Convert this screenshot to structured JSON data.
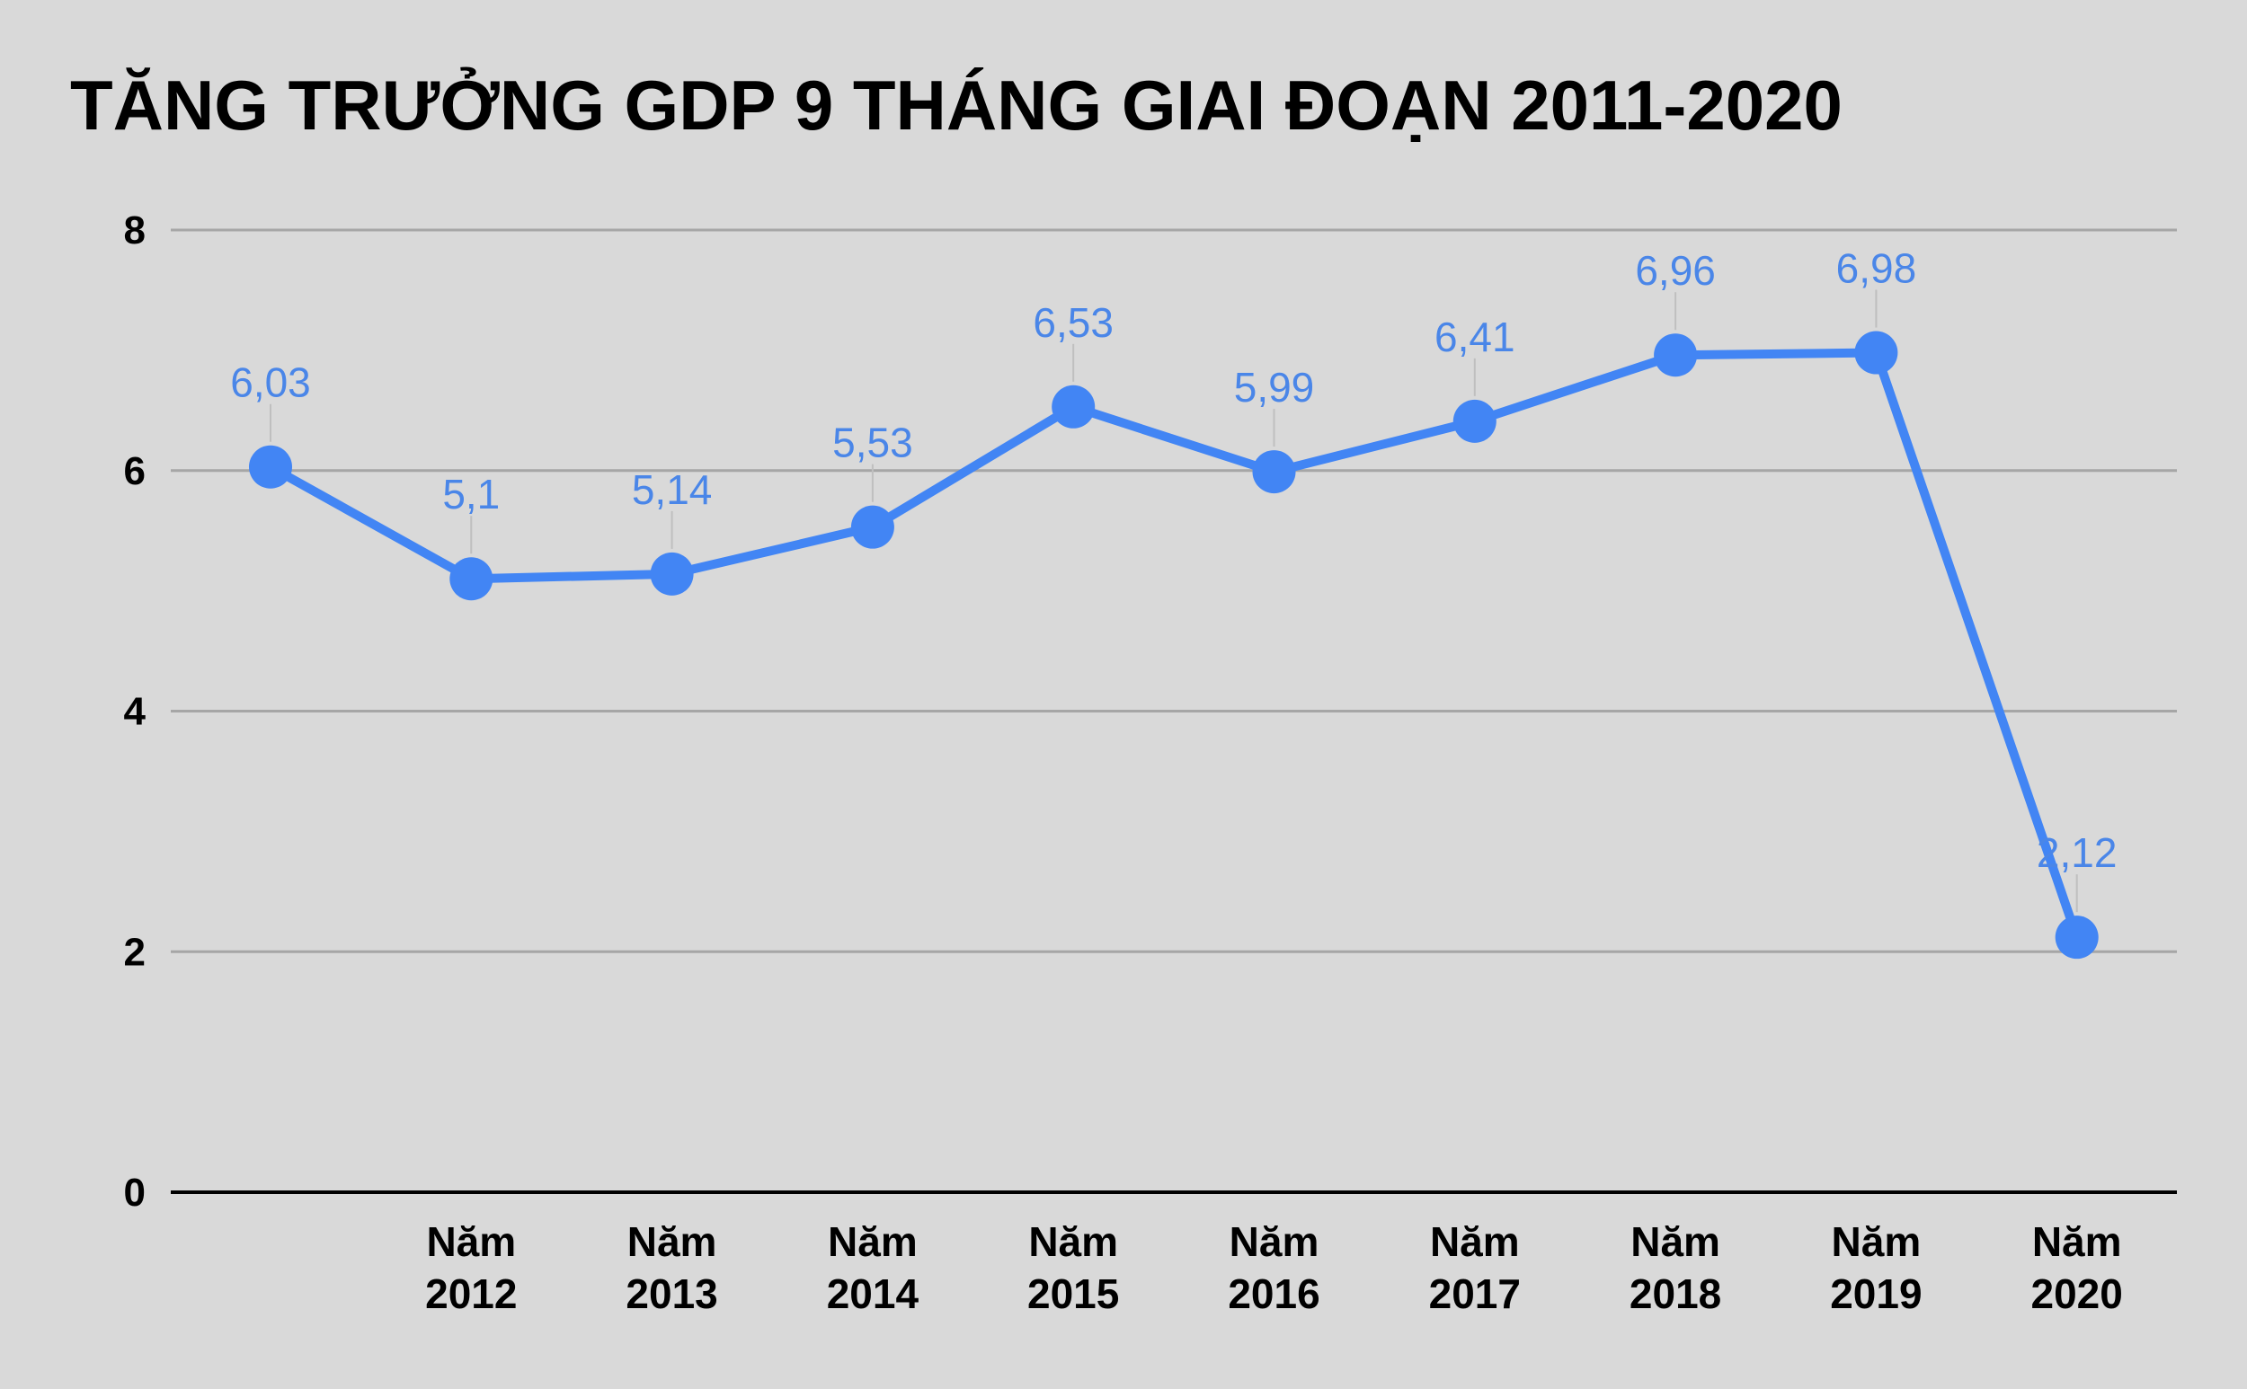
{
  "chart_data": {
    "type": "line",
    "title": "TĂNG TRƯỞNG GDP 9 THÁNG GIAI ĐOẠN 2011-2020",
    "xlabel": "",
    "ylabel": "",
    "categories": [
      [
        "",
        ""
      ],
      [
        "Năm",
        "2012"
      ],
      [
        "Năm",
        "2013"
      ],
      [
        "Năm",
        "2014"
      ],
      [
        "Năm",
        "2015"
      ],
      [
        "Năm",
        "2016"
      ],
      [
        "Năm",
        "2017"
      ],
      [
        "Năm",
        "2018"
      ],
      [
        "Năm",
        "2019"
      ],
      [
        "Năm",
        "2020"
      ]
    ],
    "series": [
      {
        "values": [
          6.03,
          5.1,
          5.14,
          5.53,
          6.53,
          5.99,
          6.41,
          6.96,
          6.98,
          2.12
        ],
        "labels": [
          "6,03",
          "5,1",
          "5,14",
          "5,53",
          "6,53",
          "5,99",
          "6,41",
          "6,96",
          "6,98",
          "2,12"
        ],
        "color": "#4285f4"
      }
    ],
    "ylim": [
      0,
      8
    ],
    "yticks": [
      0,
      2,
      4,
      6,
      8
    ],
    "ytick_labels": [
      "0",
      "2",
      "4",
      "6",
      "8"
    ],
    "grid": true,
    "legend": "none",
    "colors": {
      "background": "#d9d9d9",
      "grid": "#a6a6a6",
      "axis": "#000000",
      "line": "#4285f4",
      "label": "#4a86e8",
      "leader": "#bfbfbf"
    }
  }
}
